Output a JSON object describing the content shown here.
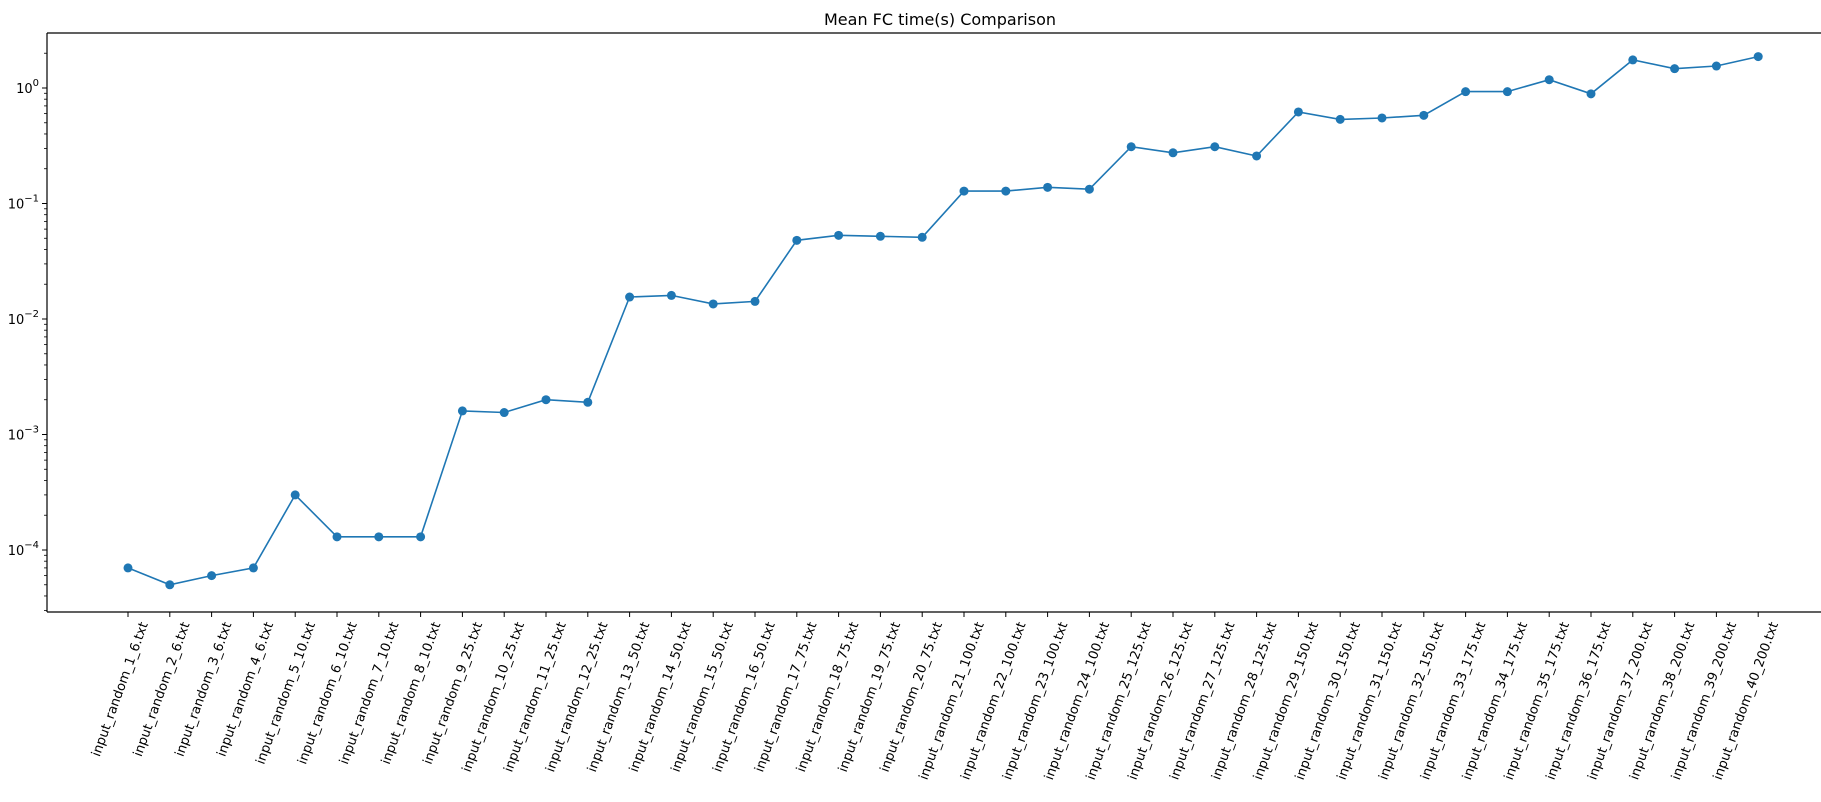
{
  "chart_data": {
    "type": "line",
    "title": "Mean FC time(s) Comparison",
    "xlabel": "",
    "ylabel": "",
    "y_scale": "log",
    "ylim": [
      3e-05,
      3.0
    ],
    "y_ticks": [
      {
        "value": 0.0001,
        "base": "10",
        "exp": "−4"
      },
      {
        "value": 0.001,
        "base": "10",
        "exp": "−3"
      },
      {
        "value": 0.01,
        "base": "10",
        "exp": "−2"
      },
      {
        "value": 0.1,
        "base": "10",
        "exp": "−1"
      },
      {
        "value": 1,
        "base": "10",
        "exp": "0"
      }
    ],
    "grid": false,
    "marker": "circle",
    "color": "#1f77b4",
    "categories": [
      "input_random_1_6.txt",
      "input_random_2_6.txt",
      "input_random_3_6.txt",
      "input_random_4_6.txt",
      "input_random_5_10.txt",
      "input_random_6_10.txt",
      "input_random_7_10.txt",
      "input_random_8_10.txt",
      "input_random_9_25.txt",
      "input_random_10_25.txt",
      "input_random_11_25.txt",
      "input_random_12_25.txt",
      "input_random_13_50.txt",
      "input_random_14_50.txt",
      "input_random_15_50.txt",
      "input_random_16_50.txt",
      "input_random_17_75.txt",
      "input_random_18_75.txt",
      "input_random_19_75.txt",
      "input_random_20_75.txt",
      "input_random_21_100.txt",
      "input_random_22_100.txt",
      "input_random_23_100.txt",
      "input_random_24_100.txt",
      "input_random_25_125.txt",
      "input_random_26_125.txt",
      "input_random_27_125.txt",
      "input_random_28_125.txt",
      "input_random_29_150.txt",
      "input_random_30_150.txt",
      "input_random_31_150.txt",
      "input_random_32_150.txt",
      "input_random_33_175.txt",
      "input_random_34_175.txt",
      "input_random_35_175.txt",
      "input_random_36_175.txt",
      "input_random_37_200.txt",
      "input_random_38_200.txt",
      "input_random_39_200.txt",
      "input_random_40_200.txt"
    ],
    "values": [
      7e-05,
      5e-05,
      6e-05,
      7e-05,
      0.0003,
      0.00013,
      0.00013,
      0.00013,
      0.0016,
      0.00155,
      0.002,
      0.0019,
      0.0155,
      0.016,
      0.0135,
      0.0142,
      0.048,
      0.053,
      0.052,
      0.051,
      0.128,
      0.128,
      0.138,
      0.133,
      0.31,
      0.275,
      0.31,
      0.258,
      0.62,
      0.535,
      0.55,
      0.58,
      0.93,
      0.93,
      1.18,
      0.89,
      1.75,
      1.47,
      1.55,
      1.87
    ]
  }
}
